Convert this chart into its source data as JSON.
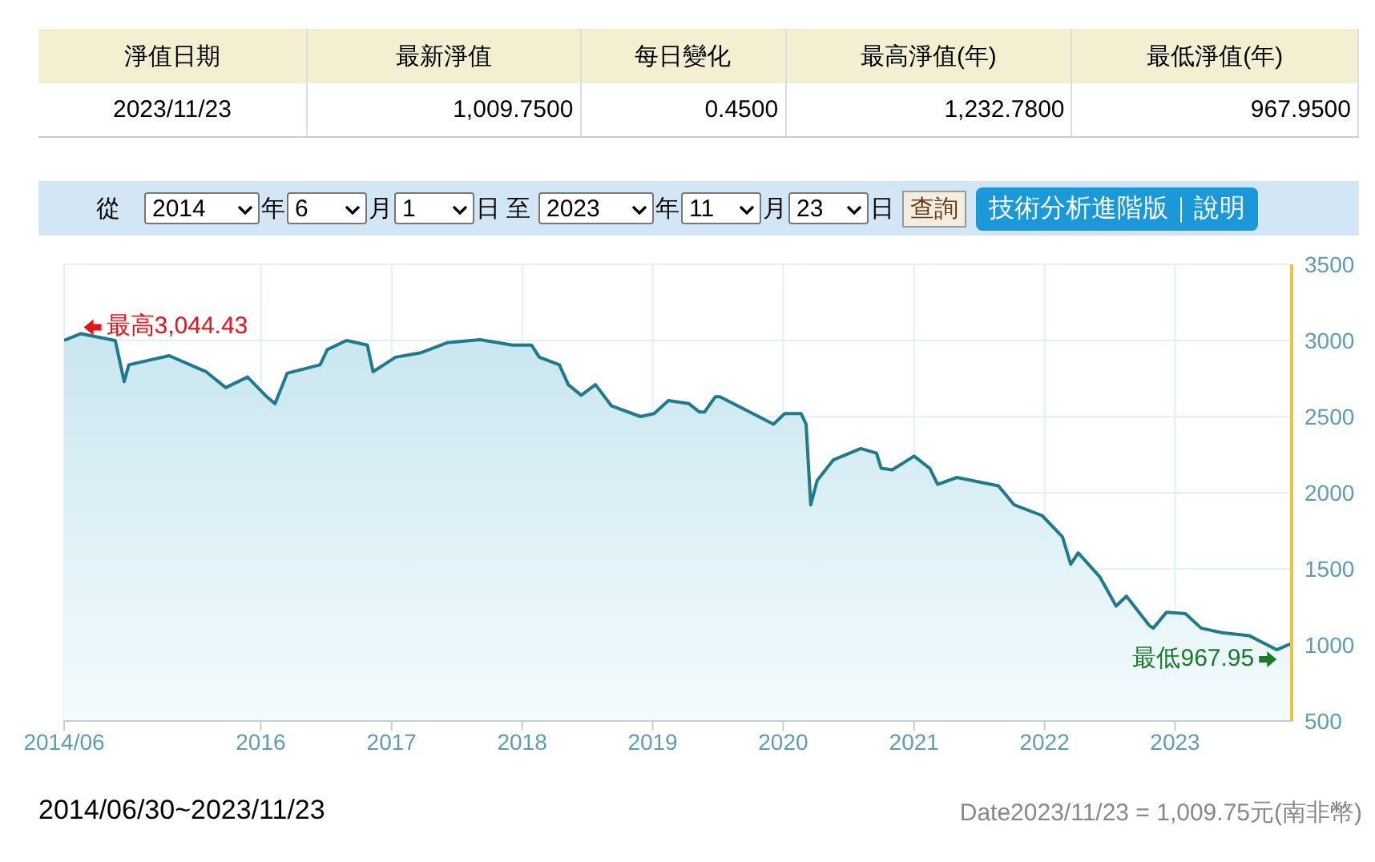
{
  "chart_data": {
    "type": "area",
    "color": "#1f7a8c",
    "x": [
      "2014-06-30",
      "2014-08-15",
      "2014-11-20",
      "2014-12-15",
      "2014-12-28",
      "2015-04-20",
      "2015-08-01",
      "2015-09-25",
      "2015-11-25",
      "2016-01-18",
      "2016-02-10",
      "2016-03-15",
      "2016-06-15",
      "2016-07-05",
      "2016-08-28",
      "2016-10-25",
      "2016-11-10",
      "2017-01-12",
      "2017-03-25",
      "2017-06-05",
      "2017-09-05",
      "2017-12-05",
      "2018-01-27",
      "2018-02-18",
      "2018-04-15",
      "2018-05-10",
      "2018-06-15",
      "2018-07-25",
      "2018-09-08",
      "2018-11-28",
      "2019-01-05",
      "2019-02-14",
      "2019-04-12",
      "2019-05-12",
      "2019-05-26",
      "2019-06-25",
      "2019-07-08",
      "2019-10-08",
      "2019-12-05",
      "2020-01-05",
      "2020-02-20",
      "2020-03-05",
      "2020-03-18",
      "2020-04-05",
      "2020-05-20",
      "2020-08-05",
      "2020-09-18",
      "2020-10-01",
      "2020-11-01",
      "2021-01-01",
      "2021-02-14",
      "2021-03-08",
      "2021-05-01",
      "2021-08-25",
      "2021-10-08",
      "2021-12-25",
      "2022-02-20",
      "2022-03-15",
      "2022-04-05",
      "2022-06-05",
      "2022-07-20",
      "2022-08-18",
      "2022-10-20",
      "2022-11-01",
      "2022-12-08",
      "2023-01-30",
      "2023-03-15",
      "2023-05-12",
      "2023-07-28",
      "2023-10-12",
      "2023-11-23"
    ],
    "values": [
      3000,
      3044.43,
      3000,
      2730,
      2840,
      2900,
      2795,
      2690,
      2760,
      2630,
      2585,
      2785,
      2840,
      2940,
      3000,
      2970,
      2795,
      2890,
      2920,
      2985,
      3005,
      2970,
      2970,
      2890,
      2840,
      2710,
      2640,
      2710,
      2570,
      2500,
      2520,
      2605,
      2585,
      2530,
      2530,
      2630,
      2630,
      2520,
      2450,
      2520,
      2520,
      2450,
      1920,
      2080,
      2215,
      2290,
      2260,
      2160,
      2150,
      2240,
      2160,
      2055,
      2100,
      2045,
      1920,
      1850,
      1710,
      1530,
      1605,
      1445,
      1255,
      1320,
      1130,
      1110,
      1215,
      1205,
      1110,
      1080,
      1060,
      967.95,
      1009.75
    ],
    "xlim": [
      "2014-06-30",
      "2023-11-23"
    ],
    "xticks": [
      {
        "value": "2014-06-30",
        "label": "2014/06"
      },
      {
        "value": "2016-01-01",
        "label": "2016"
      },
      {
        "value": "2017-01-01",
        "label": "2017"
      },
      {
        "value": "2018-01-01",
        "label": "2018"
      },
      {
        "value": "2019-01-01",
        "label": "2019"
      },
      {
        "value": "2020-01-01",
        "label": "2020"
      },
      {
        "value": "2021-01-01",
        "label": "2021"
      },
      {
        "value": "2022-01-01",
        "label": "2022"
      },
      {
        "value": "2023-01-01",
        "label": "2023"
      }
    ],
    "ylim": [
      500,
      3500
    ],
    "yticks": [
      500,
      1000,
      1500,
      2000,
      2500,
      3000,
      3500
    ],
    "grid": true,
    "annotations": [
      "淨值日期",
      "最新淨值",
      "每日變化",
      "最高淨值(年)",
      "最低淨值(年)",
      "2023/11/23",
      "1,009.7500",
      "0.4500",
      "1,232.7800",
      "967.9500",
      "從",
      "2014",
      "年",
      "6",
      "月",
      "1",
      "日",
      "至",
      "2023",
      "年",
      "11",
      "月",
      "23",
      "日",
      "查詢",
      "技術分析進階版｜說明",
      "2014/06/30~2023/11/23",
      "Date2023/11/23 = 1,009.75元(南非幣)",
      {
        "text": "最高3,044.43",
        "x": "2014-08-15",
        "y": 3044.43
      },
      {
        "text": "最低967.95",
        "x": "2023-10-12",
        "y": 967.95
      }
    ]
  }
}
